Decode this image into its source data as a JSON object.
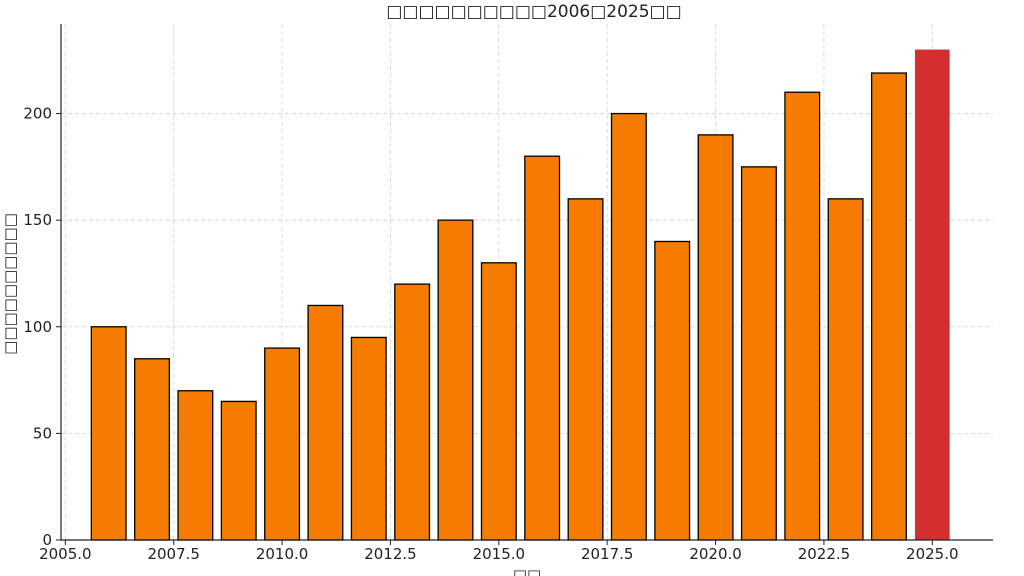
{
  "chart_data": {
    "type": "bar",
    "title": "□□□□□□□□□□2006□2025□□",
    "xlabel": "□□",
    "ylabel": "□□□□□□□□□□",
    "x": [
      2006,
      2007,
      2008,
      2009,
      2010,
      2011,
      2012,
      2013,
      2014,
      2015,
      2016,
      2017,
      2018,
      2019,
      2020,
      2021,
      2022,
      2023,
      2024,
      2025
    ],
    "values": [
      100,
      85,
      70,
      65,
      90,
      110,
      95,
      120,
      150,
      130,
      180,
      160,
      200,
      140,
      190,
      175,
      210,
      160,
      219,
      230
    ],
    "xlim": [
      2004.9,
      2026.4
    ],
    "ylim": [
      0,
      242
    ],
    "xticks": [
      "2005.0",
      "2007.5",
      "2010.0",
      "2012.5",
      "2015.0",
      "2017.5",
      "2020.0",
      "2022.5",
      "2025.0"
    ],
    "yticks": [
      "0",
      "50",
      "100",
      "150",
      "200"
    ],
    "grid": true,
    "bar_color": "#f57c00",
    "highlight_color": "#d32f2f",
    "highlight_index": 19,
    "edge_color": "#000000"
  }
}
